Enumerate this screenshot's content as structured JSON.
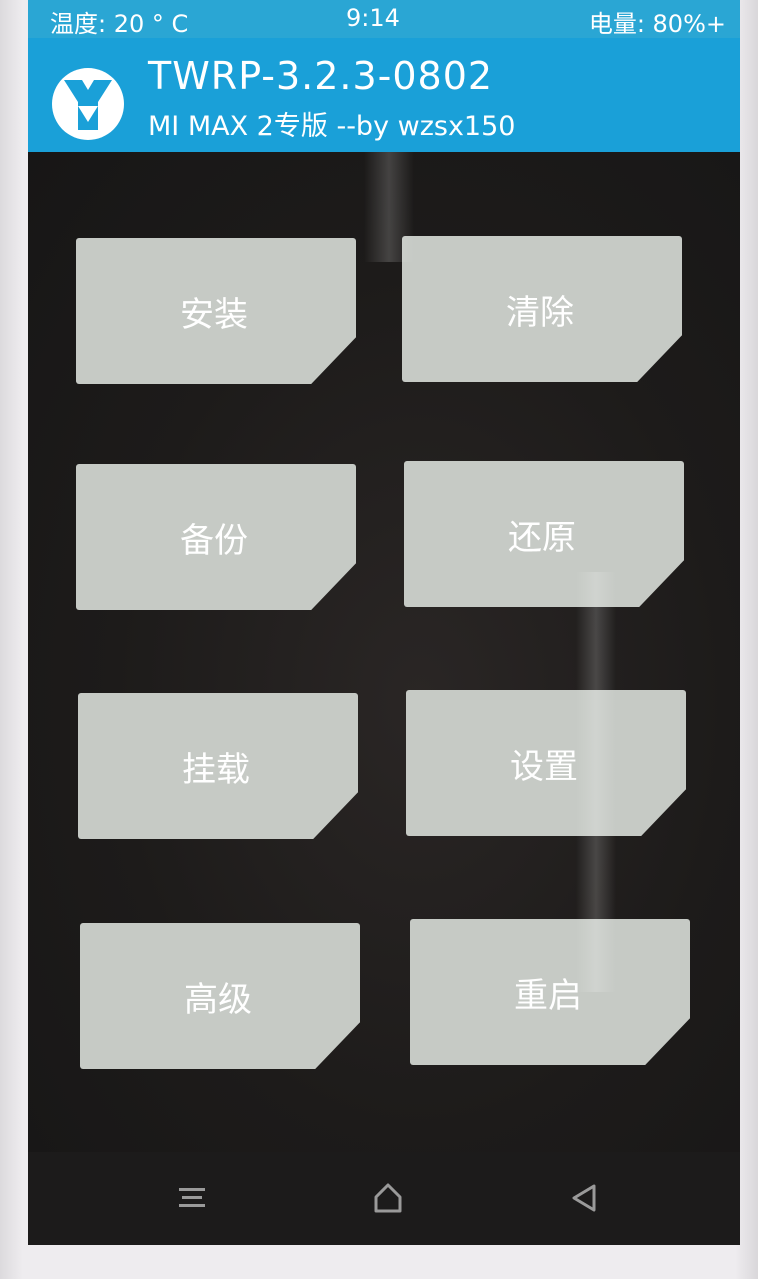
{
  "status_bar": {
    "temperature": "温度: 20 ° C",
    "time": "9:14",
    "battery": "电量: 80%+"
  },
  "header": {
    "title": "TWRP-3.2.3-0802",
    "subtitle": "MI MAX 2专版  --by wzsx150",
    "logo_icon": "twrp-logo-icon"
  },
  "menu": {
    "install": "安装",
    "wipe": "清除",
    "backup": "备份",
    "restore": "还原",
    "mount": "挂载",
    "settings": "设置",
    "advanced": "高级",
    "reboot": "重启"
  },
  "nav": {
    "menu_icon": "menu-lines-icon",
    "home_icon": "home-icon",
    "back_icon": "back-triangle-icon"
  },
  "colors": {
    "header_blue": "#1aa0d8",
    "button_gray": "#c6cac5",
    "background": "#1b1a1a"
  }
}
